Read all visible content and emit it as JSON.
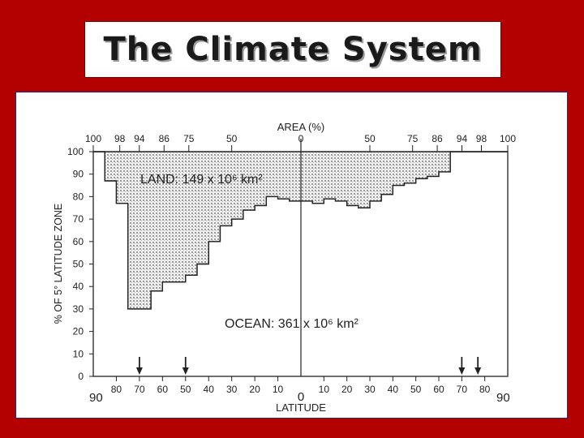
{
  "slide": {
    "title": "The Climate System"
  },
  "chart_data": {
    "type": "area",
    "top_axis_label": "AREA (%)",
    "top_ticks_left": [
      100,
      98,
      94,
      86,
      75,
      50,
      0
    ],
    "top_ticks_right": [
      50,
      75,
      86,
      94,
      98,
      100
    ],
    "ylabel": "% OF 5° LATITUDE ZONE",
    "yticks": [
      0,
      10,
      20,
      30,
      40,
      50,
      60,
      70,
      80,
      90,
      100
    ],
    "ylim": [
      0,
      100
    ],
    "xlabel": "LATITUDE",
    "xticks_left": [
      80,
      70,
      60,
      50,
      40,
      30,
      20,
      10
    ],
    "xticks_right": [
      10,
      20,
      30,
      40,
      50,
      60,
      70,
      80
    ],
    "x_center_label": "0",
    "x_end_left": "90",
    "x_end_right": "90",
    "x": [
      -90,
      -85,
      -80,
      -75,
      -70,
      -65,
      -60,
      -55,
      -50,
      -45,
      -40,
      -35,
      -30,
      -25,
      -20,
      -15,
      -10,
      -5,
      0,
      5,
      10,
      15,
      20,
      25,
      30,
      35,
      40,
      45,
      50,
      55,
      60,
      65,
      70,
      75,
      80,
      85
    ],
    "land_percent": [
      0,
      13,
      23,
      70,
      70,
      62,
      58,
      58,
      55,
      50,
      40,
      33,
      30,
      26,
      24,
      20,
      21,
      22,
      22,
      23,
      21,
      22,
      24,
      25,
      22,
      19,
      15,
      14,
      12,
      11,
      9,
      0,
      0,
      0,
      0,
      0
    ],
    "land_label": "LAND:  149 x 10⁶ km²",
    "ocean_label": "OCEAN:  361 x 10⁶ km²",
    "arrow_latitudes": [
      -70,
      -50,
      70,
      77
    ]
  }
}
